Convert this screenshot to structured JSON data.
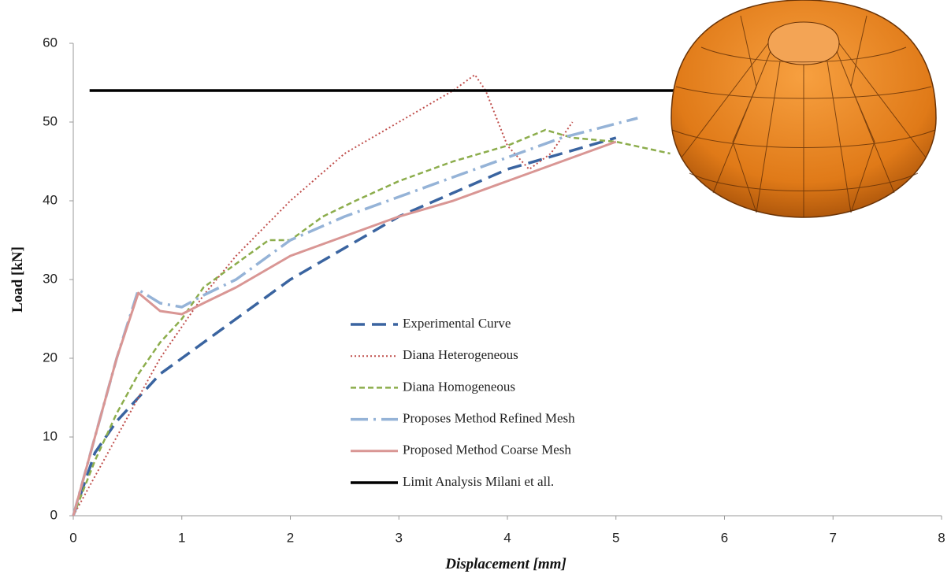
{
  "chart_data": {
    "type": "line",
    "xlabel": "Displacement [mm]",
    "ylabel": "Load [kN]",
    "xlim": [
      0,
      8
    ],
    "xticks": [
      0,
      1,
      2,
      3,
      4,
      5,
      6,
      7,
      8
    ],
    "ylim": [
      0,
      60
    ],
    "yticks": [
      0,
      10,
      20,
      30,
      40,
      50,
      60
    ],
    "grid": false,
    "legend": "center",
    "series": [
      {
        "name": "Experimental Curve",
        "color": "#3a64a0",
        "line_style": "dashed",
        "x": [
          0,
          0.1,
          0.2,
          0.4,
          0.6,
          0.8,
          1,
          1.5,
          2,
          2.5,
          3,
          3.5,
          4,
          4.5,
          5
        ],
        "values": [
          0,
          4,
          8,
          12,
          15,
          18,
          20,
          25,
          30,
          34,
          38,
          41,
          44,
          46,
          48
        ]
      },
      {
        "name": "Diana Heterogeneous",
        "color": "#c0504d",
        "line_style": "dotted",
        "x": [
          0,
          0.2,
          0.4,
          0.6,
          0.8,
          1,
          1.2,
          1.5,
          2,
          2.5,
          3,
          3.5,
          3.7,
          3.8,
          4,
          4.2,
          4.4,
          4.6
        ],
        "values": [
          0,
          5,
          10,
          15,
          20,
          24,
          28,
          33,
          40,
          46,
          50,
          54,
          56,
          54,
          47,
          44,
          46,
          50
        ]
      },
      {
        "name": "Diana Homogeneous",
        "color": "#8cad4c",
        "line_style": "short-dashed",
        "x": [
          0,
          0.2,
          0.4,
          0.6,
          0.8,
          1,
          1.2,
          1.5,
          1.8,
          2,
          2.1,
          2.3,
          2.6,
          3,
          3.5,
          4,
          4.35,
          4.6,
          5,
          5.5
        ],
        "values": [
          0,
          7,
          13,
          18,
          22,
          25,
          29,
          32,
          35,
          35,
          36,
          38,
          40,
          42.5,
          45,
          47,
          49,
          48,
          47.5,
          46
        ]
      },
      {
        "name": "Proposes Method Refined Mesh",
        "color": "#95b3d7",
        "line_style": "dash-dot",
        "x": [
          0,
          0.2,
          0.4,
          0.6,
          0.8,
          1,
          1.2,
          1.5,
          2,
          2.5,
          3,
          3.5,
          4,
          4.5,
          5.2
        ],
        "values": [
          0,
          10,
          20,
          28.7,
          27,
          26.5,
          28,
          30,
          35,
          38,
          40.5,
          43,
          45.5,
          48,
          50.5
        ]
      },
      {
        "name": "Proposed Method Coarse Mesh",
        "color": "#d99694",
        "line_style": "solid",
        "x": [
          0,
          0.2,
          0.4,
          0.6,
          0.8,
          1,
          1.2,
          1.5,
          2,
          2.5,
          3,
          3.5,
          4,
          4.5,
          5
        ],
        "values": [
          0,
          10,
          20,
          28.3,
          26,
          25.6,
          27,
          29,
          33,
          35.5,
          38,
          40,
          42.5,
          45,
          47.5
        ]
      },
      {
        "name": "Limit Analysis Milani et all.",
        "color": "#000000",
        "line_style": "solid",
        "x": [
          0.15,
          5.6
        ],
        "values": [
          54,
          54
        ]
      }
    ]
  }
}
